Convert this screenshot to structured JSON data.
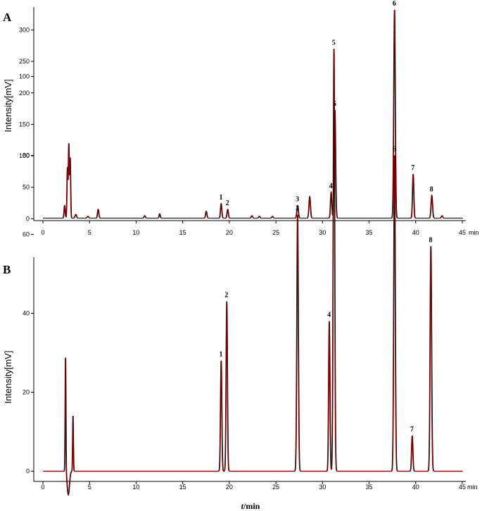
{
  "chart_data": [
    {
      "type": "line",
      "panel": "A",
      "ylabel": "Intensity[mV]",
      "x_unit": "min",
      "xlim": [
        0,
        45
      ],
      "ylim": [
        -5,
        340
      ],
      "xticks": [
        0,
        5,
        10,
        15,
        20,
        25,
        30,
        35,
        40,
        45
      ],
      "yticks": [
        0,
        50,
        100,
        150,
        200,
        250,
        300
      ],
      "baseline": 1,
      "peaks": [
        {
          "t": 2.3,
          "h": 20,
          "w": 0.06,
          "label": ""
        },
        {
          "t": 2.6,
          "h": 78,
          "w": 0.05,
          "label": ""
        },
        {
          "t": 2.75,
          "h": 117,
          "w": 0.05,
          "label": ""
        },
        {
          "t": 2.9,
          "h": 95,
          "w": 0.05,
          "label": ""
        },
        {
          "t": 3.5,
          "h": 6,
          "w": 0.08,
          "label": ""
        },
        {
          "t": 4.8,
          "h": 3,
          "w": 0.08,
          "label": ""
        },
        {
          "t": 5.9,
          "h": 14,
          "w": 0.07,
          "label": ""
        },
        {
          "t": 10.9,
          "h": 4,
          "w": 0.07,
          "label": ""
        },
        {
          "t": 12.5,
          "h": 7,
          "w": 0.06,
          "label": ""
        },
        {
          "t": 17.5,
          "h": 11,
          "w": 0.07,
          "label": ""
        },
        {
          "t": 19.1,
          "h": 23,
          "w": 0.07,
          "label": "1"
        },
        {
          "t": 19.8,
          "h": 14,
          "w": 0.07,
          "label": "2"
        },
        {
          "t": 22.4,
          "h": 4,
          "w": 0.07,
          "label": ""
        },
        {
          "t": 23.2,
          "h": 3,
          "w": 0.07,
          "label": ""
        },
        {
          "t": 24.6,
          "h": 3,
          "w": 0.07,
          "label": ""
        },
        {
          "t": 27.3,
          "h": 20,
          "w": 0.08,
          "label": "3"
        },
        {
          "t": 28.6,
          "h": 34,
          "w": 0.08,
          "label": ""
        },
        {
          "t": 30.9,
          "h": 41,
          "w": 0.07,
          "label": "4"
        },
        {
          "t": 31.3,
          "h": 172,
          "w": 0.08,
          "label": "5"
        },
        {
          "t": 37.7,
          "h": 331,
          "w": 0.08,
          "label": "6"
        },
        {
          "t": 39.7,
          "h": 70,
          "w": 0.07,
          "label": "7"
        },
        {
          "t": 41.7,
          "h": 36,
          "w": 0.08,
          "label": "8"
        },
        {
          "t": 42.8,
          "h": 4,
          "w": 0.07,
          "label": ""
        }
      ]
    },
    {
      "type": "line",
      "panel": "B",
      "ylabel": "Intensity[mV]",
      "xlabel": "t/min",
      "x_unit": "min",
      "xlim": [
        0,
        45
      ],
      "ylim": [
        -4,
        110
      ],
      "xticks": [
        0,
        5,
        10,
        15,
        20,
        25,
        30,
        35,
        40,
        45
      ],
      "yticks": [
        0,
        20,
        40,
        60,
        80,
        100
      ],
      "baseline": 0,
      "peaks": [
        {
          "t": 2.4,
          "h": 29,
          "w": 0.04,
          "label": ""
        },
        {
          "t": 2.7,
          "h": -6,
          "w": 0.12,
          "label": ""
        },
        {
          "t": 3.2,
          "h": 14,
          "w": 0.04,
          "label": ""
        },
        {
          "t": 19.1,
          "h": 28,
          "w": 0.07,
          "label": "1"
        },
        {
          "t": 19.7,
          "h": 43,
          "w": 0.07,
          "label": "2"
        },
        {
          "t": 27.3,
          "h": 65,
          "w": 0.08,
          "label": "3"
        },
        {
          "t": 30.7,
          "h": 38,
          "w": 0.07,
          "label": "4"
        },
        {
          "t": 31.2,
          "h": 107,
          "w": 0.08,
          "label": "5"
        },
        {
          "t": 37.7,
          "h": 80,
          "w": 0.08,
          "label": "6"
        },
        {
          "t": 39.6,
          "h": 9,
          "w": 0.07,
          "label": "7"
        },
        {
          "t": 41.6,
          "h": 57,
          "w": 0.08,
          "label": "8"
        }
      ]
    }
  ],
  "colors": {
    "trace_primary": "#8b0000",
    "trace_secondary": "#000000",
    "axis": "#000000"
  }
}
